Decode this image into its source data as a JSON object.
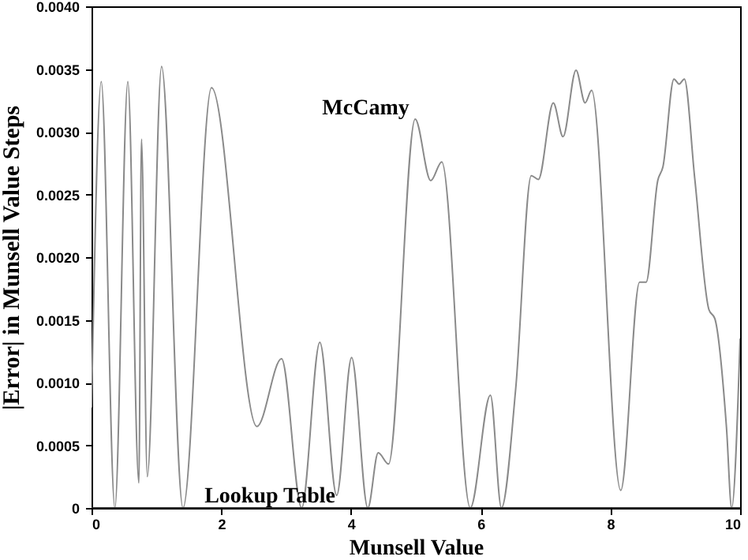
{
  "chart_data": {
    "type": "line",
    "xlabel": "Munsell Value",
    "ylabel": "|Error| in Munsell Value Steps",
    "xlim": [
      0,
      10
    ],
    "ylim": [
      0,
      0.004
    ],
    "xticks": [
      0,
      2,
      4,
      6,
      8,
      10
    ],
    "yticks": [
      0,
      0.0005,
      {
        "value": 0.001,
        "label": "0.0010"
      },
      0.0015,
      {
        "value": 0.002,
        "label": "0.0020"
      },
      0.0025,
      {
        "value": 0.003,
        "label": "0.0030"
      },
      0.0035,
      {
        "value": 0.004,
        "label": "0.0040"
      }
    ],
    "grid": false,
    "marker": "none",
    "line_style": "solid",
    "series": [
      {
        "name": "McCamy",
        "color": "#8a8a8a",
        "x": [
          0,
          0.15,
          0.36,
          0.56,
          0.73,
          0.77,
          0.86,
          1.08,
          1.41,
          1.85,
          2.55,
          2.93,
          3.24,
          3.52,
          3.78,
          4.01,
          4.26,
          4.42,
          4.58,
          4.99,
          5.23,
          5.4,
          5.84,
          6.15,
          6.32,
          6.54,
          6.78,
          6.89,
          7.12,
          7.27,
          7.47,
          7.61,
          7.71,
          8.16,
          8.45,
          8.55,
          8.73,
          8.81,
          8.98,
          9.06,
          9.14,
          9.3,
          9.52,
          9.61,
          9.79,
          9.87,
          10
        ],
        "values": [
          0.0008,
          0.0034,
          0,
          0.0034,
          0.0002,
          0.00294,
          0.00025,
          0.00352,
          0,
          0.00335,
          0.00065,
          0.00119,
          0,
          0.00132,
          0.0001,
          0.0012,
          0,
          0.00044,
          0.00035,
          0.0031,
          0.00261,
          0.00276,
          0,
          0.0009,
          0,
          0.00095,
          0.00265,
          0.00262,
          0.00323,
          0.00296,
          0.00349,
          0.00323,
          0.00333,
          0.00014,
          0.0018,
          0.0018,
          0.00261,
          0.00272,
          0.00342,
          0.00338,
          0.00342,
          0.00263,
          0.00158,
          0.00151,
          0.00064,
          0,
          0.00135
        ]
      },
      {
        "name": "Lookup Table",
        "color": "#333333",
        "x": [
          0,
          2,
          4,
          6,
          8,
          10
        ],
        "values": [
          0,
          0,
          0,
          0,
          0,
          0
        ]
      }
    ]
  }
}
